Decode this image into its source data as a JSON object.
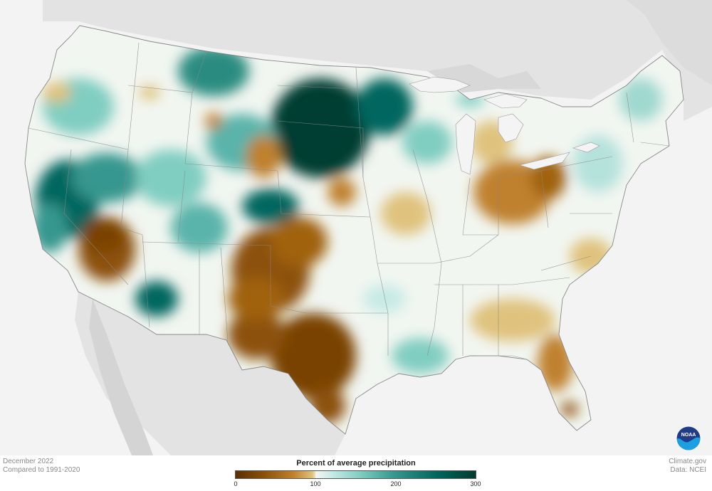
{
  "meta": {
    "period": "December 2022",
    "baseline": "Compared to 1991-2020",
    "source_site": "Climate.gov",
    "data_source": "Data: NCEI"
  },
  "legend": {
    "title": "Percent of average precipitation",
    "ticks": [
      "0",
      "100",
      "200",
      "300"
    ],
    "colors": {
      "very_dry": "#5a3000",
      "dry": "#bf812d",
      "near_normal": "#f5f5f5",
      "wet": "#35978f",
      "very_wet": "#003c30"
    }
  },
  "logo": {
    "text": "NOAA",
    "icon": "noaa-logo-icon"
  },
  "map_colors": {
    "land_background": "#e3e3e3",
    "ocean": "#f3f3f3",
    "country_fill": "#f4f4f4",
    "borders": "#888888"
  }
}
